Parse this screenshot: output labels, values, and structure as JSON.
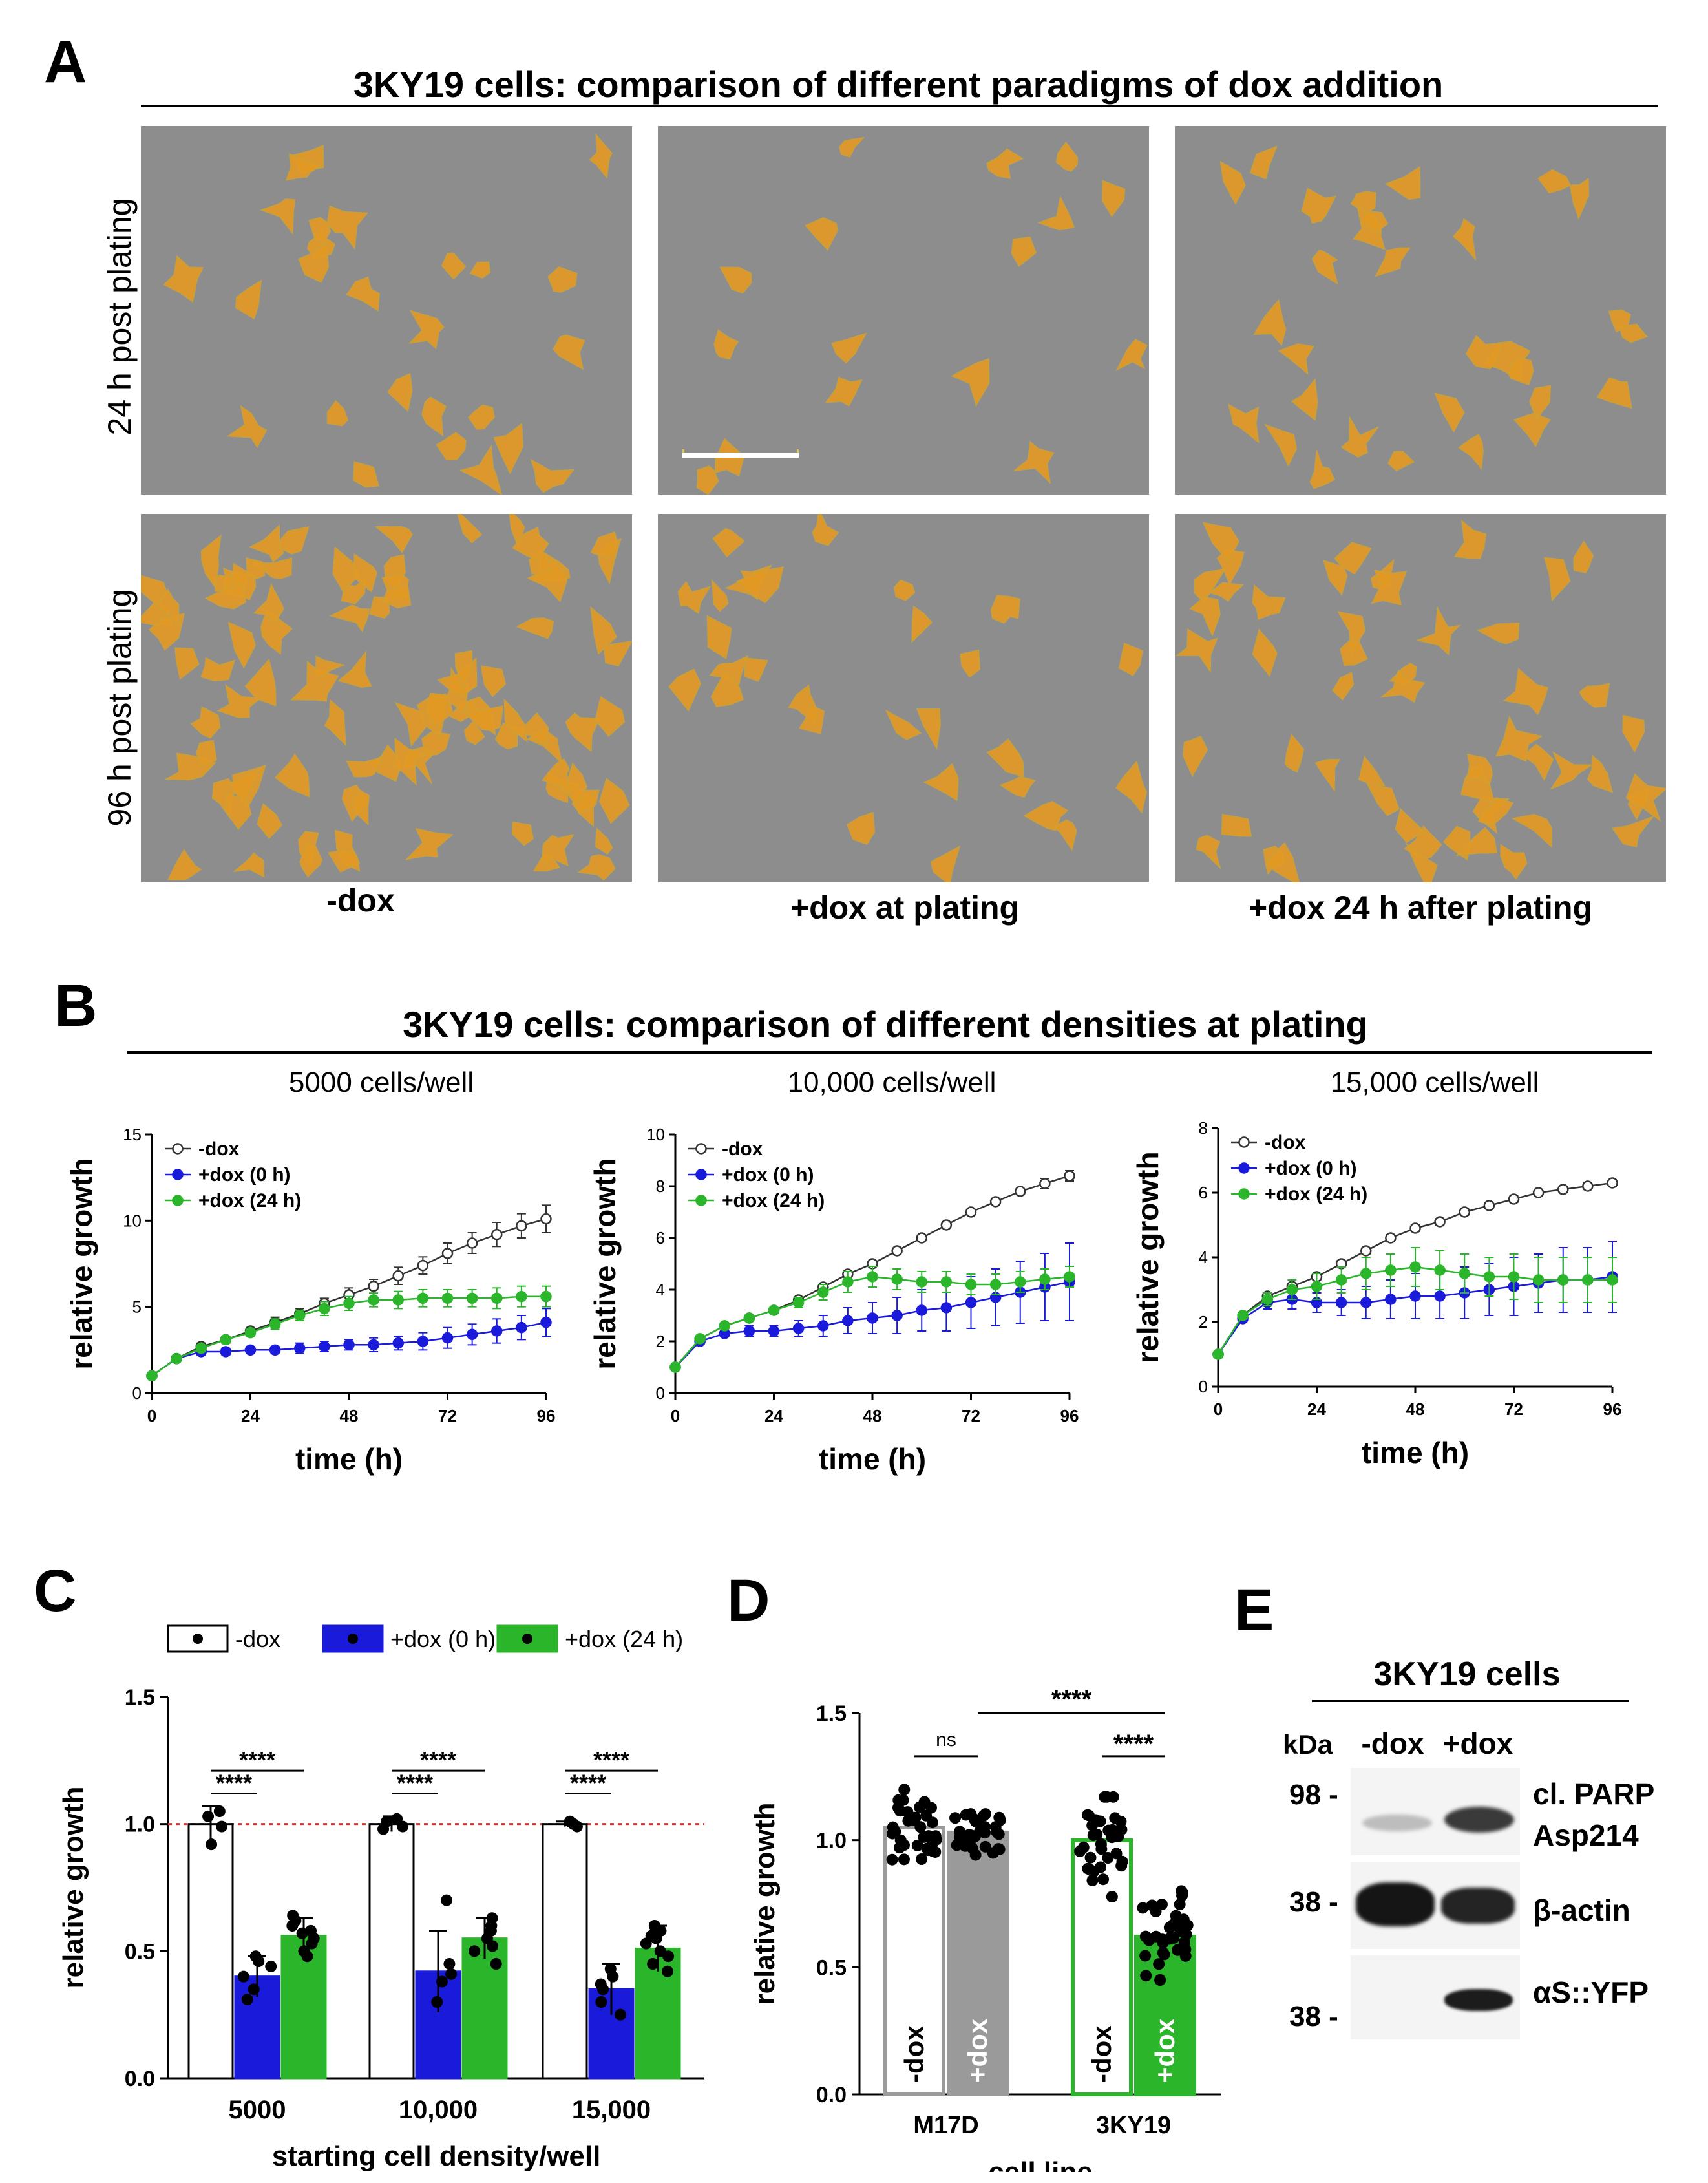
{
  "panels": {
    "A": "A",
    "B": "B",
    "C": "C",
    "D": "D",
    "E": "E"
  },
  "panelA": {
    "title": "3KY19 cells: comparison of different paradigms of dox addition",
    "rows": [
      "24 h post plating",
      "96 h post plating"
    ],
    "columns": [
      "-dox",
      "+dox at plating",
      "+dox 24 h after plating"
    ],
    "colors": {
      "background": "#8d8d8d",
      "cell": "#e39a24",
      "outline": "#c9a23a",
      "scalebar": "#ffffff"
    }
  },
  "panelB": {
    "title": "3KY19  cells: comparison of different densities at plating",
    "subtitles": [
      "5000 cells/well",
      "10,000 cells/well",
      "15,000 cells/well"
    ],
    "ylabel": "relative growth",
    "xlabel": "time (h)",
    "legend": [
      "-dox",
      "+dox (0 h)",
      "+dox (24 h)"
    ]
  },
  "panelC": {
    "legend": [
      "-dox",
      "+dox (0 h)",
      "+dox (24 h)"
    ],
    "ylabel": "relative growth",
    "xlabel": "starting cell density/well",
    "sig": "****"
  },
  "panelD": {
    "ylabel": "relative growth",
    "xlabel": "cell line",
    "ns": "ns",
    "sig": "****",
    "barlabels": [
      "-dox",
      "+dox",
      "-dox",
      "+dox"
    ]
  },
  "panelE": {
    "title": "3KY19 cells",
    "kda": "kDa",
    "lanes": [
      "-dox",
      "+dox"
    ],
    "markers": [
      "98 -",
      "38 -",
      "38 -"
    ],
    "bands": [
      "cl. PARP",
      "Asp214",
      "β-actin",
      "αS::YFP"
    ]
  },
  "chart_data": [
    {
      "id": "B1",
      "type": "line",
      "title": "5000 cells/well",
      "xlabel": "time (h)",
      "ylabel": "relative growth",
      "xlim": [
        0,
        96
      ],
      "ylim": [
        0,
        15
      ],
      "xticks": [
        0,
        24,
        48,
        72,
        96
      ],
      "yticks": [
        0,
        5,
        10,
        15
      ],
      "x": [
        0,
        6,
        12,
        18,
        24,
        30,
        36,
        42,
        48,
        54,
        60,
        66,
        72,
        78,
        84,
        90,
        96
      ],
      "series": [
        {
          "name": "-dox",
          "color": "#333333",
          "values": [
            1,
            2,
            2.7,
            3.1,
            3.6,
            4.1,
            4.6,
            5.2,
            5.7,
            6.2,
            6.8,
            7.4,
            8.1,
            8.7,
            9.2,
            9.7,
            10.1
          ],
          "err": [
            0,
            0.1,
            0.2,
            0.2,
            0.2,
            0.3,
            0.3,
            0.3,
            0.4,
            0.4,
            0.5,
            0.5,
            0.6,
            0.6,
            0.7,
            0.7,
            0.8
          ]
        },
        {
          "name": "+dox (0 h)",
          "color": "#1a1adb",
          "values": [
            1,
            2,
            2.4,
            2.4,
            2.5,
            2.5,
            2.6,
            2.7,
            2.8,
            2.8,
            2.9,
            3.0,
            3.2,
            3.4,
            3.6,
            3.8,
            4.1
          ],
          "err": [
            0,
            0.1,
            0.2,
            0.2,
            0.2,
            0.2,
            0.3,
            0.3,
            0.3,
            0.4,
            0.4,
            0.5,
            0.6,
            0.6,
            0.7,
            0.7,
            0.8
          ]
        },
        {
          "name": "+dox (24 h)",
          "color": "#2bb52b",
          "values": [
            1,
            2,
            2.6,
            3.1,
            3.5,
            4.0,
            4.5,
            4.9,
            5.2,
            5.4,
            5.4,
            5.5,
            5.5,
            5.5,
            5.5,
            5.6,
            5.6
          ],
          "err": [
            0,
            0.1,
            0.2,
            0.2,
            0.2,
            0.3,
            0.3,
            0.4,
            0.4,
            0.4,
            0.5,
            0.5,
            0.5,
            0.5,
            0.6,
            0.6,
            0.6
          ]
        }
      ]
    },
    {
      "id": "B2",
      "type": "line",
      "title": "10,000 cells/well",
      "xlabel": "time (h)",
      "ylabel": "relative growth",
      "xlim": [
        0,
        96
      ],
      "ylim": [
        0,
        10
      ],
      "xticks": [
        0,
        24,
        48,
        72,
        96
      ],
      "yticks": [
        0,
        2,
        4,
        6,
        8,
        10
      ],
      "x": [
        0,
        6,
        12,
        18,
        24,
        30,
        36,
        42,
        48,
        54,
        60,
        66,
        72,
        78,
        84,
        90,
        96
      ],
      "series": [
        {
          "name": "-dox",
          "color": "#333333",
          "values": [
            1,
            2.1,
            2.6,
            2.9,
            3.2,
            3.6,
            4.1,
            4.6,
            5.0,
            5.5,
            6.0,
            6.5,
            7.0,
            7.4,
            7.8,
            8.1,
            8.4
          ],
          "err": [
            0,
            0.1,
            0.1,
            0.1,
            0.1,
            0.1,
            0.1,
            0.1,
            0.1,
            0.1,
            0.1,
            0.1,
            0.1,
            0.1,
            0.1,
            0.2,
            0.2
          ]
        },
        {
          "name": "+dox (0 h)",
          "color": "#1a1adb",
          "values": [
            1,
            2,
            2.3,
            2.4,
            2.4,
            2.5,
            2.6,
            2.8,
            2.9,
            3.0,
            3.2,
            3.3,
            3.5,
            3.7,
            3.9,
            4.1,
            4.3
          ],
          "err": [
            0,
            0.1,
            0.1,
            0.2,
            0.2,
            0.3,
            0.4,
            0.5,
            0.6,
            0.7,
            0.8,
            0.9,
            1.0,
            1.1,
            1.2,
            1.3,
            1.5
          ]
        },
        {
          "name": "+dox (24 h)",
          "color": "#2bb52b",
          "values": [
            1,
            2.1,
            2.6,
            2.9,
            3.2,
            3.5,
            3.9,
            4.3,
            4.5,
            4.4,
            4.3,
            4.3,
            4.2,
            4.2,
            4.3,
            4.4,
            4.5
          ],
          "err": [
            0,
            0.1,
            0.1,
            0.1,
            0.1,
            0.2,
            0.3,
            0.4,
            0.4,
            0.4,
            0.4,
            0.4,
            0.4,
            0.4,
            0.4,
            0.4,
            0.4
          ]
        }
      ]
    },
    {
      "id": "B3",
      "type": "line",
      "title": "15,000 cells/well",
      "xlabel": "time (h)",
      "ylabel": "relative growth",
      "xlim": [
        0,
        96
      ],
      "ylim": [
        0,
        8
      ],
      "xticks": [
        0,
        24,
        48,
        72,
        96
      ],
      "yticks": [
        0,
        2,
        4,
        6,
        8
      ],
      "x": [
        0,
        6,
        12,
        18,
        24,
        30,
        36,
        42,
        48,
        54,
        60,
        66,
        72,
        78,
        84,
        90,
        96
      ],
      "series": [
        {
          "name": "-dox",
          "color": "#333333",
          "values": [
            1,
            2.2,
            2.8,
            3.1,
            3.4,
            3.8,
            4.2,
            4.6,
            4.9,
            5.1,
            5.4,
            5.6,
            5.8,
            6.0,
            6.1,
            6.2,
            6.3
          ],
          "err": [
            0,
            0.1,
            0.1,
            0.1,
            0.1,
            0.1,
            0.1,
            0.1,
            0.1,
            0.1,
            0.1,
            0.1,
            0.1,
            0.1,
            0.1,
            0.1,
            0.1
          ]
        },
        {
          "name": "+dox (0 h)",
          "color": "#1a1adb",
          "values": [
            1,
            2.1,
            2.6,
            2.7,
            2.6,
            2.6,
            2.6,
            2.7,
            2.8,
            2.8,
            2.9,
            3.0,
            3.1,
            3.2,
            3.3,
            3.3,
            3.4
          ],
          "err": [
            0,
            0.1,
            0.2,
            0.3,
            0.3,
            0.4,
            0.5,
            0.6,
            0.7,
            0.7,
            0.8,
            0.8,
            0.9,
            0.9,
            1.0,
            1.0,
            1.1
          ]
        },
        {
          "name": "+dox (24 h)",
          "color": "#2bb52b",
          "values": [
            1,
            2.2,
            2.7,
            3.0,
            3.1,
            3.3,
            3.5,
            3.6,
            3.7,
            3.6,
            3.5,
            3.4,
            3.4,
            3.3,
            3.3,
            3.3,
            3.3
          ],
          "err": [
            0,
            0.1,
            0.2,
            0.3,
            0.4,
            0.4,
            0.5,
            0.5,
            0.6,
            0.6,
            0.6,
            0.6,
            0.7,
            0.7,
            0.7,
            0.7,
            0.7
          ]
        }
      ]
    },
    {
      "id": "C",
      "type": "bar",
      "xlabel": "starting cell density/well",
      "ylabel": "relative growth",
      "ylim": [
        0,
        1.5
      ],
      "yticks": [
        0.0,
        0.5,
        1.0,
        1.5
      ],
      "ytick_labels": [
        "0.0",
        "0.5",
        "1.0",
        "1.5"
      ],
      "reference_line": 1.0,
      "categories": [
        "5000",
        "10,000",
        "15,000"
      ],
      "series": [
        {
          "name": "-dox",
          "color": "#ffffff",
          "values": [
            1.0,
            1.0,
            1.0
          ],
          "err": [
            0.07,
            0.03,
            0.01
          ],
          "points": [
            [
              1.03,
              0.99,
              0.92,
              1.05
            ],
            [
              1.01,
              0.98,
              1.02,
              0.99
            ],
            [
              1.0,
              0.99,
              1.01,
              1.0
            ]
          ]
        },
        {
          "name": "+dox (0 h)",
          "color": "#1a1adb",
          "values": [
            0.4,
            0.42,
            0.35
          ],
          "err": [
            0.08,
            0.16,
            0.1
          ],
          "points": [
            [
              0.46,
              0.35,
              0.4,
              0.31,
              0.44,
              0.48
            ],
            [
              0.7,
              0.3,
              0.45,
              0.38,
              0.41
            ],
            [
              0.43,
              0.3,
              0.37,
              0.25,
              0.4,
              0.35
            ]
          ]
        },
        {
          "name": "+dox (24 h)",
          "color": "#2bb52b",
          "values": [
            0.56,
            0.55,
            0.51
          ],
          "err": [
            0.07,
            0.08,
            0.09
          ],
          "points": [
            [
              0.64,
              0.58,
              0.5,
              0.55,
              0.6,
              0.48,
              0.53,
              0.57,
              0.62
            ],
            [
              0.63,
              0.5,
              0.55,
              0.45,
              0.58,
              0.52,
              0.6
            ],
            [
              0.6,
              0.45,
              0.55,
              0.5,
              0.48,
              0.56,
              0.42,
              0.58,
              0.53
            ]
          ]
        }
      ],
      "significance": [
        {
          "category": "5000",
          "pairs": [
            "-dox vs +dox (0 h)",
            "-dox vs +dox (24 h)"
          ],
          "label": "****"
        },
        {
          "category": "10,000",
          "pairs": [
            "-dox vs +dox (0 h)",
            "-dox vs +dox (24 h)"
          ],
          "label": "****"
        },
        {
          "category": "15,000",
          "pairs": [
            "-dox vs +dox (0 h)",
            "-dox vs +dox (24 h)"
          ],
          "label": "****"
        }
      ]
    },
    {
      "id": "D",
      "type": "bar",
      "xlabel": "cell line",
      "ylabel": "relative growth",
      "ylim": [
        0,
        1.5
      ],
      "yticks": [
        0.0,
        0.5,
        1.0,
        1.5
      ],
      "ytick_labels": [
        "0.0",
        "0.5",
        "1.0",
        "1.5"
      ],
      "categories": [
        "M17D",
        "3KY19"
      ],
      "bars": [
        {
          "category": "M17D",
          "label": "-dox",
          "value": 1.05,
          "fill": "#ffffff",
          "edge": "#9a9a9a"
        },
        {
          "category": "M17D",
          "label": "+dox",
          "value": 1.03,
          "fill": "#9a9a9a",
          "edge": "#9a9a9a"
        },
        {
          "category": "3KY19",
          "label": "-dox",
          "value": 1.0,
          "fill": "#ffffff",
          "edge": "#2bb52b"
        },
        {
          "category": "3KY19",
          "label": "+dox",
          "value": 0.62,
          "fill": "#2bb52b",
          "edge": "#2bb52b"
        }
      ],
      "point_spread": [
        [
          0.85,
          1.2
        ],
        [
          0.9,
          1.12
        ],
        [
          0.68,
          1.17
        ],
        [
          0.45,
          0.8
        ]
      ],
      "significance": [
        {
          "pair": "M17D -dox vs M17D +dox",
          "label": "ns"
        },
        {
          "pair": "3KY19 -dox vs 3KY19 +dox",
          "label": "****"
        },
        {
          "pair": "M17D +dox vs 3KY19 +dox",
          "label": "****"
        }
      ]
    }
  ]
}
